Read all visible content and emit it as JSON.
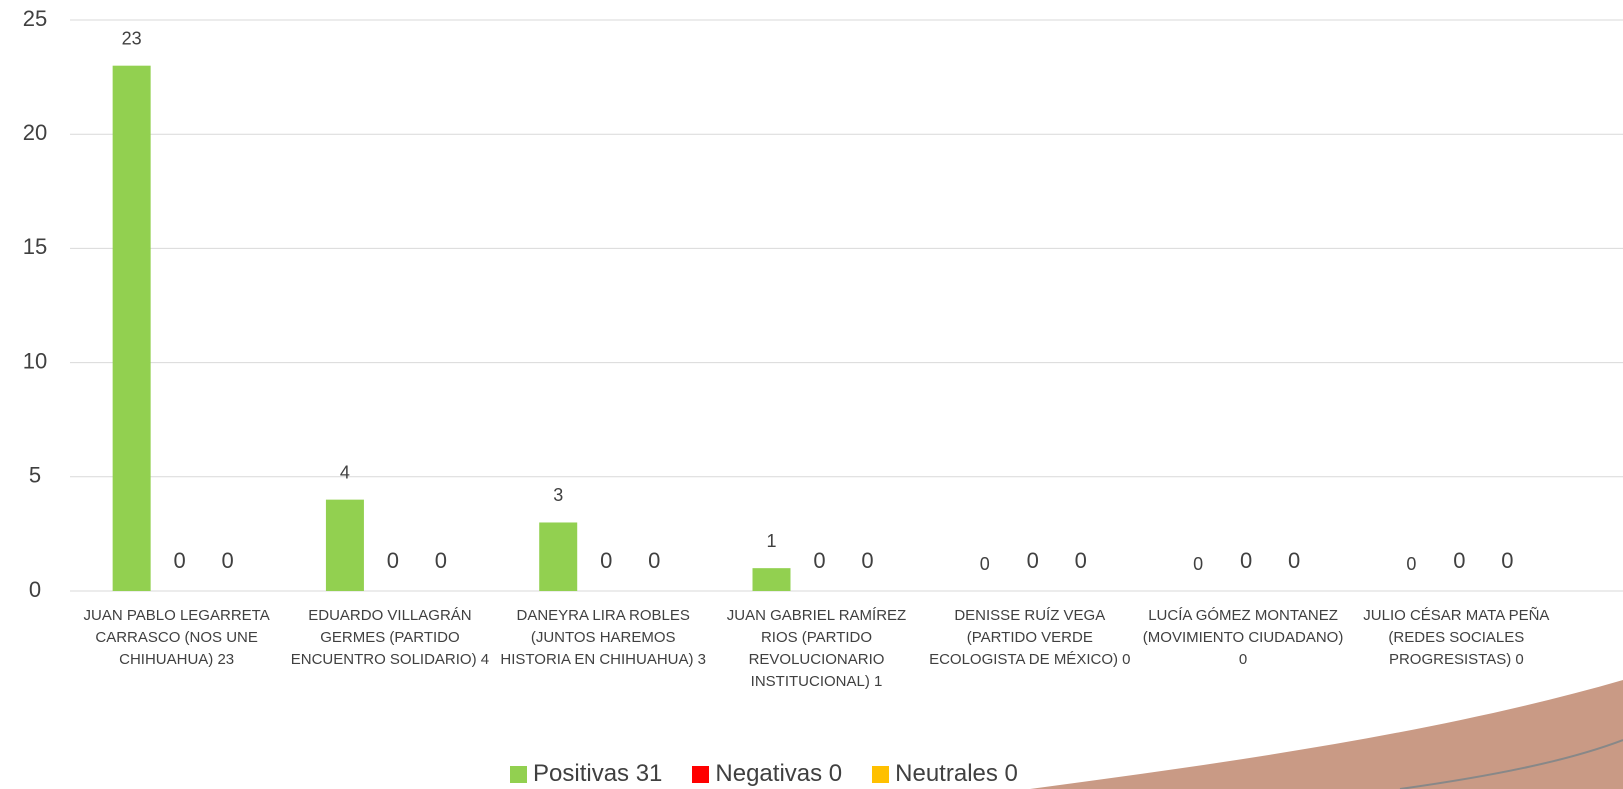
{
  "chart_data": {
    "type": "bar",
    "categories": [
      "JUAN PABLO LEGARRETA CARRASCO (NOS UNE CHIHUAHUA) 23",
      "EDUARDO VILLAGRÁN GERMES (PARTIDO ENCUENTRO SOLIDARIO) 4",
      "DANEYRA LIRA ROBLES (JUNTOS HAREMOS HISTORIA EN CHIHUAHUA) 3",
      "JUAN GABRIEL RAMÍREZ RIOS (PARTIDO REVOLUCIONARIO INSTITUCIONAL) 1",
      "DENISSE  RUÍZ VEGA (PARTIDO VERDE ECOLOGISTA DE MÉXICO) 0",
      "LUCÍA GÓMEZ MONTANEZ (MOVIMIENTO CIUDADANO) 0",
      "JULIO CÉSAR MATA PEÑA (REDES SOCIALES PROGRESISTAS) 0"
    ],
    "series": [
      {
        "name": "Positivas 31",
        "color": "#92d050",
        "values": [
          23,
          4,
          3,
          1,
          0,
          0,
          0
        ]
      },
      {
        "name": "Negativas 0",
        "color": "#ff0000",
        "values": [
          0,
          0,
          0,
          0,
          0,
          0,
          0
        ]
      },
      {
        "name": "Neutrales 0",
        "color": "#ffc000",
        "values": [
          0,
          0,
          0,
          0,
          0,
          0,
          0
        ]
      }
    ],
    "ylim": [
      0,
      25
    ],
    "yticks": [
      0,
      5,
      10,
      15,
      20,
      25
    ],
    "grid": true
  }
}
